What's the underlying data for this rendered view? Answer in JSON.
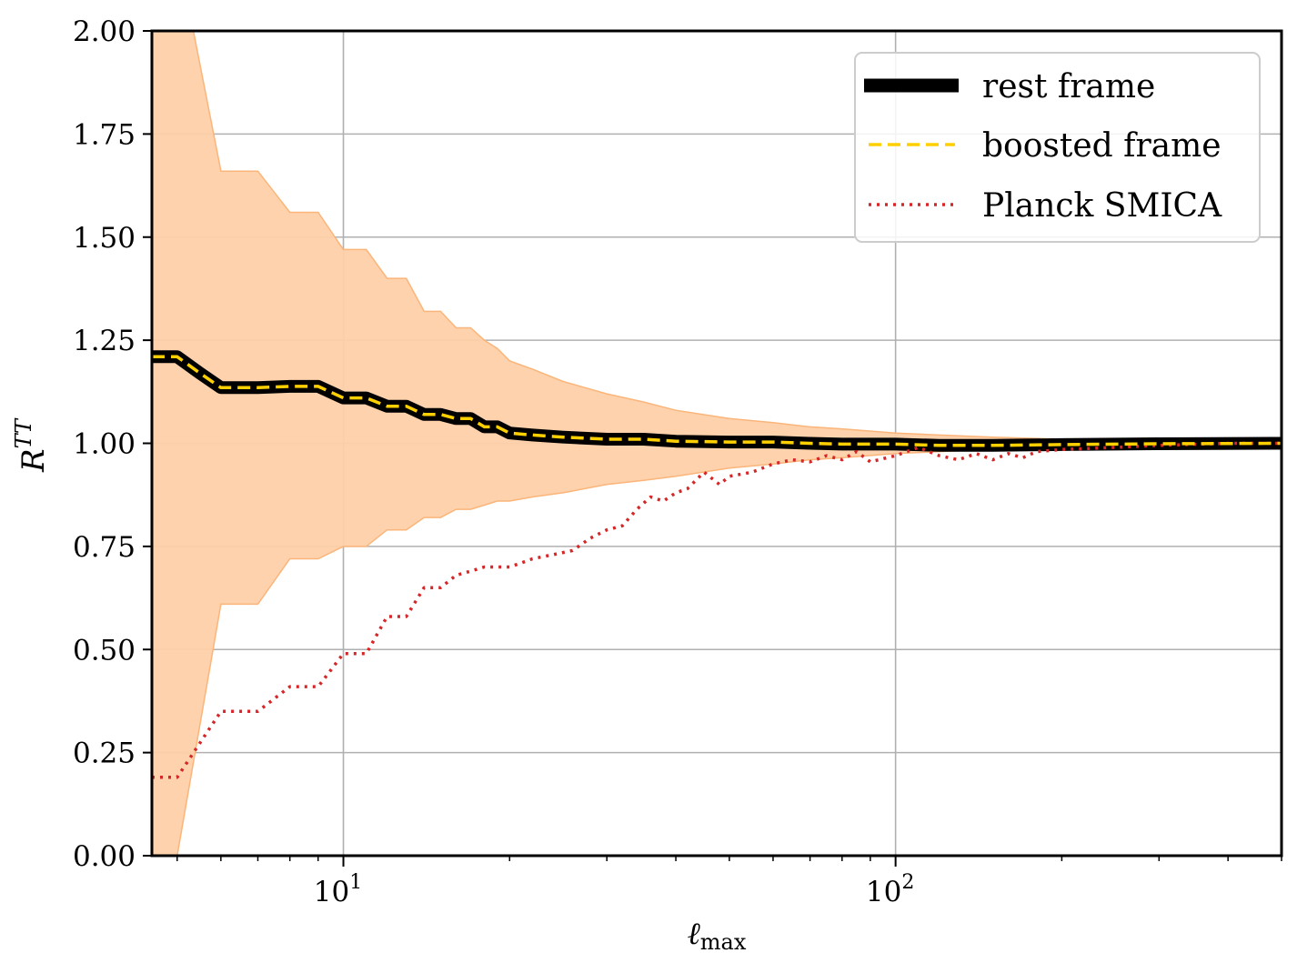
{
  "chart_data": {
    "type": "line",
    "xlabel": "ℓ",
    "xlabel_sub": "max",
    "ylabel": "R",
    "ylabel_sup": "TT",
    "xscale": "log",
    "xlim": [
      4.5,
      500
    ],
    "ylim": [
      0,
      2
    ],
    "grid": true,
    "legend_position": "upper right",
    "x_ticks": [
      {
        "value": 10,
        "base": "10",
        "exp": "1"
      },
      {
        "value": 100,
        "base": "10",
        "exp": "2"
      }
    ],
    "y_ticks": [
      {
        "value": 0,
        "label": "0.00"
      },
      {
        "value": 0.25,
        "label": "0.25"
      },
      {
        "value": 0.5,
        "label": "0.50"
      },
      {
        "value": 0.75,
        "label": "0.75"
      },
      {
        "value": 1.0,
        "label": "1.00"
      },
      {
        "value": 1.25,
        "label": "1.25"
      },
      {
        "value": 1.5,
        "label": "1.50"
      },
      {
        "value": 1.75,
        "label": "1.75"
      },
      {
        "value": 2.0,
        "label": "2.00"
      }
    ],
    "band": {
      "color": "#fdd0a8",
      "edge_color": "#fbb57a",
      "x": [
        4.5,
        5,
        6,
        7,
        8,
        9,
        10,
        11,
        12,
        13,
        14,
        15,
        16,
        17,
        18,
        19,
        20,
        22,
        25,
        30,
        35,
        40,
        50,
        60,
        70,
        80,
        100,
        120,
        150,
        200,
        300,
        500
      ],
      "upper": [
        2.2,
        2.2,
        1.66,
        1.66,
        1.56,
        1.56,
        1.47,
        1.47,
        1.4,
        1.4,
        1.32,
        1.32,
        1.28,
        1.28,
        1.25,
        1.23,
        1.2,
        1.18,
        1.15,
        1.12,
        1.1,
        1.08,
        1.06,
        1.05,
        1.04,
        1.035,
        1.025,
        1.02,
        1.015,
        1.01,
        1.005,
        1.003
      ],
      "lower": [
        0.0,
        0.0,
        0.61,
        0.61,
        0.72,
        0.72,
        0.75,
        0.75,
        0.79,
        0.79,
        0.82,
        0.82,
        0.84,
        0.84,
        0.85,
        0.86,
        0.86,
        0.87,
        0.88,
        0.9,
        0.91,
        0.92,
        0.94,
        0.95,
        0.96,
        0.965,
        0.975,
        0.98,
        0.985,
        0.99,
        0.995,
        0.997
      ]
    },
    "series": [
      {
        "name": "rest frame",
        "color": "#000000",
        "style": "solid",
        "x": [
          4.5,
          5,
          5.5,
          6,
          7,
          8,
          9,
          10,
          11,
          12,
          13,
          14,
          15,
          16,
          17,
          18,
          19,
          20,
          22,
          25,
          30,
          35,
          40,
          50,
          60,
          70,
          80,
          100,
          120,
          150,
          200,
          300,
          500
        ],
        "y": [
          1.21,
          1.21,
          1.17,
          1.135,
          1.135,
          1.138,
          1.138,
          1.11,
          1.11,
          1.09,
          1.09,
          1.07,
          1.07,
          1.06,
          1.06,
          1.04,
          1.04,
          1.025,
          1.02,
          1.015,
          1.01,
          1.01,
          1.005,
          1.003,
          1.003,
          1.0,
          0.998,
          0.998,
          0.995,
          0.995,
          0.997,
          0.999,
          1.0
        ]
      },
      {
        "name": "boosted frame",
        "color": "#ffd000",
        "style": "dashed",
        "x": [
          4.5,
          5,
          5.5,
          6,
          7,
          8,
          9,
          10,
          11,
          12,
          13,
          14,
          15,
          16,
          17,
          18,
          19,
          20,
          22,
          25,
          30,
          35,
          40,
          50,
          60,
          70,
          80,
          100,
          120,
          150,
          200,
          300,
          500
        ],
        "y": [
          1.21,
          1.21,
          1.17,
          1.135,
          1.135,
          1.138,
          1.138,
          1.11,
          1.11,
          1.09,
          1.09,
          1.07,
          1.07,
          1.06,
          1.06,
          1.04,
          1.04,
          1.025,
          1.02,
          1.015,
          1.01,
          1.01,
          1.005,
          1.003,
          1.003,
          1.0,
          0.998,
          0.998,
          0.995,
          0.995,
          0.997,
          0.999,
          1.0
        ]
      },
      {
        "name": "Planck SMICA",
        "color": "#d62728",
        "style": "dotted",
        "x": [
          4.5,
          5,
          6,
          7,
          8,
          9,
          10,
          11,
          12,
          13,
          14,
          15,
          16,
          17,
          18,
          19,
          20,
          21,
          22,
          24,
          26,
          28,
          30,
          32,
          34,
          36,
          38,
          40,
          42,
          45,
          48,
          50,
          55,
          60,
          65,
          70,
          75,
          80,
          85,
          90,
          100,
          110,
          120,
          130,
          140,
          150,
          160,
          170,
          180,
          200,
          250,
          300,
          400,
          500
        ],
        "y": [
          0.19,
          0.19,
          0.35,
          0.35,
          0.41,
          0.41,
          0.49,
          0.49,
          0.58,
          0.58,
          0.65,
          0.65,
          0.68,
          0.69,
          0.7,
          0.7,
          0.7,
          0.71,
          0.72,
          0.73,
          0.74,
          0.77,
          0.79,
          0.8,
          0.84,
          0.87,
          0.86,
          0.88,
          0.89,
          0.93,
          0.9,
          0.92,
          0.93,
          0.95,
          0.96,
          0.955,
          0.97,
          0.96,
          0.98,
          0.955,
          0.97,
          0.99,
          0.97,
          0.96,
          0.975,
          0.96,
          0.975,
          0.965,
          0.98,
          0.985,
          0.99,
          0.995,
          1.0,
          1.0
        ]
      }
    ],
    "legend": [
      {
        "label": "rest frame"
      },
      {
        "label": "boosted frame"
      },
      {
        "label": "Planck SMICA"
      }
    ]
  }
}
